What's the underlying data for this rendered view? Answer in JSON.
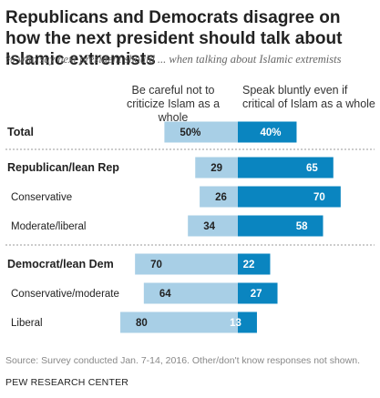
{
  "chart_data": {
    "type": "bar",
    "title": "Republicans and Democrats disagree on how the next president should talk about Islamic extremists",
    "subtitle": "% who say next president should ... when talking about Islamic extremists",
    "series": [
      {
        "name": "Be careful not to criticize Islam as a whole",
        "color": "#a8cfe6"
      },
      {
        "name": "Speak bluntly even if critical of Islam as a whole",
        "color": "#0a85c0"
      }
    ],
    "rows": [
      {
        "label": "Total",
        "left": 50,
        "right": 40,
        "bold": true,
        "left_suffix": "%",
        "right_suffix": "%"
      },
      {
        "label": "Republican/lean Rep",
        "left": 29,
        "right": 65,
        "bold": true
      },
      {
        "label": "Conservative",
        "left": 26,
        "right": 70,
        "bold": false
      },
      {
        "label": "Moderate/liberal",
        "left": 34,
        "right": 58,
        "bold": false
      },
      {
        "label": "Democrat/lean Dem",
        "left": 70,
        "right": 22,
        "bold": true
      },
      {
        "label": "Conservative/moderate",
        "left": 64,
        "right": 27,
        "bold": false
      },
      {
        "label": "Liberal",
        "left": 80,
        "right": 13,
        "bold": false
      }
    ]
  },
  "footer": {
    "source": "Source: Survey conducted Jan. 7-14, 2016. Other/don't know responses not shown.",
    "org": "PEW RESEARCH CENTER"
  }
}
